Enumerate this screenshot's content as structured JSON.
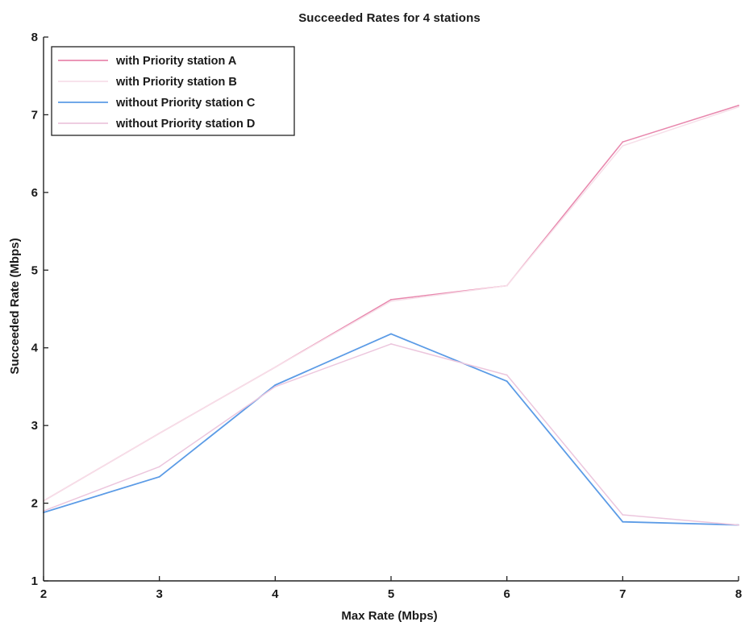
{
  "chart_data": {
    "type": "line",
    "title": "Succeeded Rates for 4 stations",
    "xlabel": "Max Rate (Mbps)",
    "ylabel": "Succeeded Rate (Mbps)",
    "x": [
      2,
      3,
      4,
      5,
      6,
      7,
      8
    ],
    "xlim": [
      2,
      8
    ],
    "ylim": [
      1,
      8
    ],
    "xticks": [
      2,
      3,
      4,
      5,
      6,
      7,
      8
    ],
    "yticks": [
      1,
      2,
      3,
      4,
      5,
      6,
      7,
      8
    ],
    "grid": false,
    "legend_position": "top-left",
    "series": [
      {
        "name": "with Priority station A",
        "color": "#e887ad",
        "values": [
          2.03,
          2.9,
          3.75,
          4.62,
          4.8,
          6.65,
          7.12
        ]
      },
      {
        "name": "with Priority station B",
        "color": "#f7dfe9",
        "values": [
          2.03,
          2.9,
          3.75,
          4.6,
          4.8,
          6.6,
          7.1
        ]
      },
      {
        "name": "without Priority station C",
        "color": "#5b9be6",
        "values": [
          1.88,
          2.34,
          3.52,
          4.18,
          3.57,
          1.76,
          1.72
        ]
      },
      {
        "name": "without Priority station D",
        "color": "#ecc6dd",
        "values": [
          1.9,
          2.47,
          3.5,
          4.05,
          3.65,
          1.85,
          1.72
        ]
      }
    ]
  }
}
